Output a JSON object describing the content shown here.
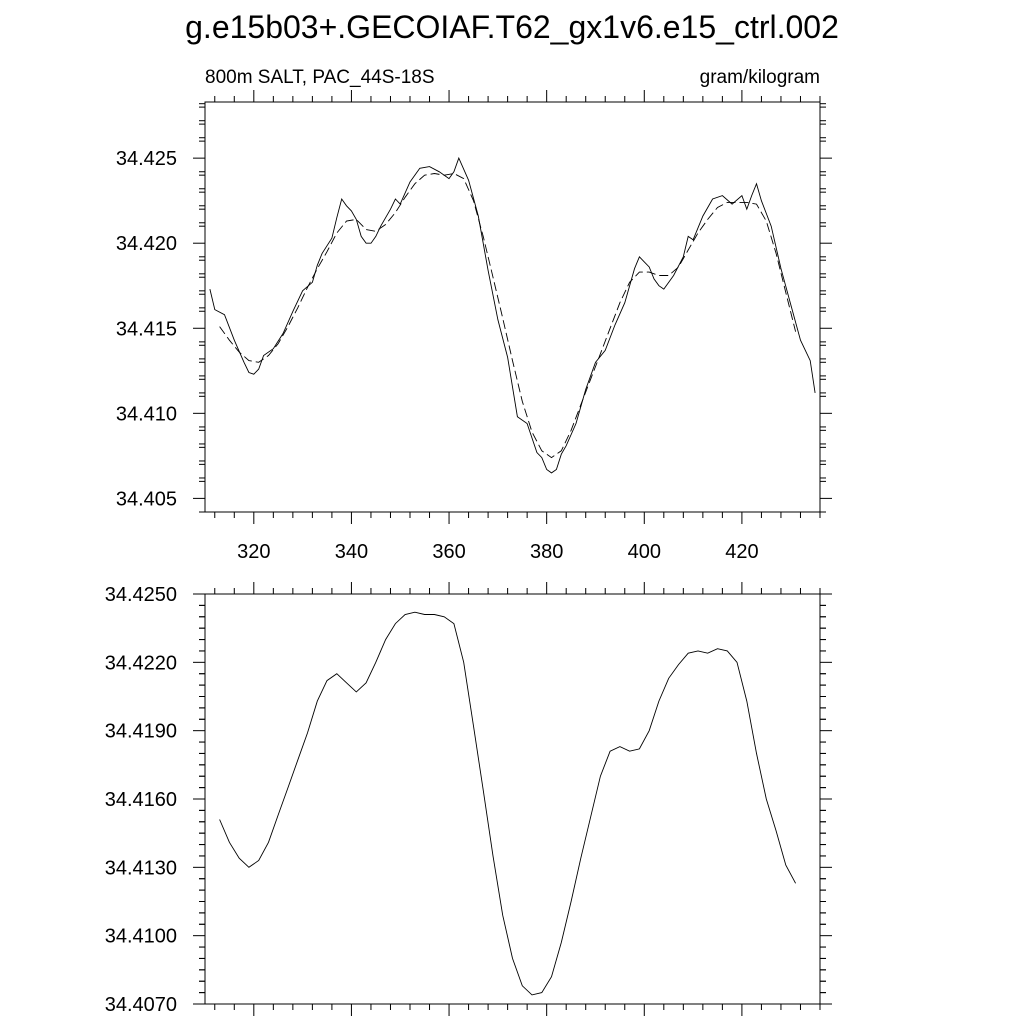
{
  "figure": {
    "title": "g.e15b03+.GECOIAF.T62_gx1v6.e15_ctrl.002",
    "left_string": "800m SALT, PAC_44S-18S",
    "right_string": "gram/kilogram"
  },
  "chart_data": [
    {
      "type": "line",
      "xlim": [
        310,
        436
      ],
      "ylim": [
        34.4042,
        34.4283
      ],
      "x_ticks": [
        "320",
        "340",
        "360",
        "380",
        "400",
        "420"
      ],
      "y_ticks": [
        "34.405",
        "34.410",
        "34.415",
        "34.420",
        "34.425"
      ],
      "grid": false,
      "series": [
        {
          "style": "solid",
          "x": [
            311,
            312,
            314,
            316,
            318,
            319,
            320,
            321,
            322,
            324,
            326,
            328,
            330,
            332,
            333,
            334,
            336,
            337,
            338,
            339,
            340,
            341,
            342,
            343,
            344,
            345,
            346,
            347,
            348,
            349,
            350,
            352,
            354,
            356,
            358,
            360,
            361,
            362,
            364,
            366,
            368,
            370,
            372,
            374,
            376,
            378,
            379,
            380,
            381,
            382,
            383,
            384,
            386,
            388,
            390,
            392,
            394,
            396,
            398,
            399,
            400,
            401,
            402,
            403,
            404,
            406,
            408,
            409,
            410,
            412,
            414,
            416,
            418,
            420,
            421,
            422,
            423,
            424,
            426,
            428,
            430,
            432,
            434,
            435
          ],
          "y": [
            34.4173,
            34.4161,
            34.4158,
            34.4143,
            34.413,
            34.4124,
            34.4123,
            34.4126,
            34.4134,
            34.4138,
            34.4147,
            34.416,
            34.4172,
            34.4177,
            34.4187,
            34.4194,
            34.4203,
            34.4215,
            34.4226,
            34.4222,
            34.4219,
            34.4214,
            34.4204,
            34.42,
            34.42,
            34.4204,
            34.421,
            34.4215,
            34.422,
            34.4226,
            34.4223,
            34.4236,
            34.4244,
            34.4245,
            34.4242,
            34.4238,
            34.4242,
            34.425,
            34.4237,
            34.4216,
            34.4184,
            34.4155,
            34.4133,
            34.4098,
            34.4094,
            34.4077,
            34.4074,
            34.4067,
            34.4065,
            34.4067,
            34.4076,
            34.4081,
            34.4094,
            34.4114,
            34.413,
            34.4137,
            34.4152,
            34.4165,
            34.4185,
            34.4192,
            34.4189,
            34.4186,
            34.4179,
            34.4175,
            34.4173,
            34.4181,
            34.4192,
            34.4204,
            34.4202,
            34.4216,
            34.4226,
            34.4228,
            34.4223,
            34.4228,
            34.422,
            34.4228,
            34.4235,
            34.4225,
            34.421,
            34.4185,
            34.4164,
            34.4143,
            34.4131,
            34.4112
          ]
        },
        {
          "style": "dashed",
          "x": [
            313,
            315,
            317,
            319,
            321,
            323,
            325,
            327,
            329,
            331,
            333,
            335,
            337,
            339,
            341,
            343,
            345,
            347,
            349,
            351,
            353,
            355,
            357,
            359,
            361,
            363,
            365,
            367,
            369,
            371,
            373,
            375,
            377,
            379,
            381,
            383,
            385,
            387,
            389,
            391,
            393,
            395,
            397,
            399,
            401,
            403,
            405,
            407,
            409,
            411,
            413,
            415,
            417,
            419,
            421,
            423,
            425,
            427,
            429,
            431
          ],
          "y": [
            34.4151,
            34.4143,
            34.4136,
            34.4131,
            34.413,
            34.4134,
            34.4141,
            34.4151,
            34.4162,
            34.4174,
            34.4185,
            34.4195,
            34.4206,
            34.4213,
            34.4214,
            34.4208,
            34.4207,
            34.4211,
            34.4218,
            34.4227,
            34.4235,
            34.424,
            34.4241,
            34.424,
            34.4241,
            34.4238,
            34.4225,
            34.4204,
            34.418,
            34.4156,
            34.4131,
            34.4107,
            34.4089,
            34.4078,
            34.4074,
            34.4078,
            34.409,
            34.4105,
            34.412,
            34.4135,
            34.415,
            34.4165,
            34.4177,
            34.4183,
            34.4183,
            34.4181,
            34.4181,
            34.4186,
            34.4196,
            34.4206,
            34.4214,
            34.4221,
            34.4224,
            34.4224,
            34.4224,
            34.4223,
            34.4213,
            34.4194,
            34.4171,
            34.4148
          ]
        }
      ]
    },
    {
      "type": "line",
      "xlim": [
        310,
        436
      ],
      "ylim": [
        34.407,
        34.425
      ],
      "x_ticks": [
        "",
        "",
        "",
        "",
        "",
        ""
      ],
      "y_ticks": [
        "34.4070",
        "34.4100",
        "34.4130",
        "34.4160",
        "34.4190",
        "34.4220",
        "34.4250"
      ],
      "grid": false,
      "series": [
        {
          "style": "solid",
          "x": [
            313,
            315,
            317,
            319,
            321,
            323,
            325,
            327,
            329,
            331,
            333,
            335,
            337,
            339,
            341,
            343,
            345,
            347,
            349,
            351,
            353,
            355,
            357,
            359,
            361,
            363,
            365,
            367,
            369,
            371,
            373,
            375,
            377,
            379,
            381,
            383,
            385,
            387,
            389,
            391,
            393,
            395,
            397,
            399,
            401,
            403,
            405,
            407,
            409,
            411,
            413,
            415,
            417,
            419,
            421,
            423,
            425,
            427,
            429,
            431
          ],
          "y": [
            34.4151,
            34.4141,
            34.4134,
            34.413,
            34.4133,
            34.4141,
            34.4153,
            34.4165,
            34.4177,
            34.4189,
            34.4203,
            34.4212,
            34.4215,
            34.4211,
            34.4207,
            34.4211,
            34.422,
            34.423,
            34.4237,
            34.4241,
            34.4242,
            34.4241,
            34.4241,
            34.424,
            34.4237,
            34.422,
            34.4192,
            34.4164,
            34.4135,
            34.4109,
            34.409,
            34.4078,
            34.4074,
            34.4075,
            34.4082,
            34.4097,
            34.4115,
            34.4134,
            34.4152,
            34.417,
            34.4181,
            34.4183,
            34.4181,
            34.4182,
            34.419,
            34.4203,
            34.4213,
            34.4219,
            34.4224,
            34.4225,
            34.4224,
            34.4226,
            34.4225,
            34.422,
            34.4203,
            34.418,
            34.416,
            34.4146,
            34.4131,
            34.4123
          ]
        }
      ]
    }
  ]
}
